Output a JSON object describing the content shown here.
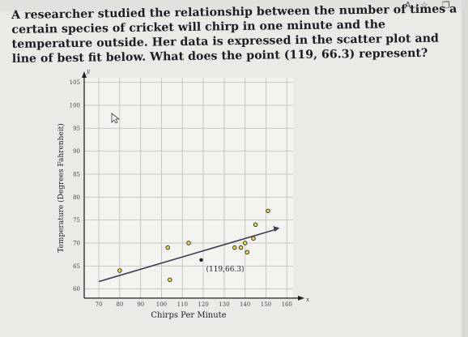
{
  "toolbar": {
    "icons": [
      "text-size-icon",
      "star-icon",
      "bookmark-icon"
    ],
    "text_size_label": "A",
    "star_glyph": "☆",
    "bookmark_glyph": "❒"
  },
  "question": {
    "text": "A researcher studied the relationship between the number of times a certain species of cricket will chirp in one minute and the temperature outside. Her data is expressed in the scatter plot and line of best fit below. What does the point (119, 66.3) represent?"
  },
  "chart_data": {
    "type": "scatter",
    "xlabel": "Chirps Per Minute",
    "ylabel": "Temperature (Degrees Fahrenheit)",
    "x_axis_letter": "x",
    "y_axis_letter": "y",
    "xlim": [
      63,
      163
    ],
    "ylim": [
      58,
      106
    ],
    "x_ticks": [
      70,
      80,
      90,
      100,
      110,
      120,
      130,
      140,
      150,
      160
    ],
    "y_ticks": [
      60,
      65,
      70,
      75,
      80,
      85,
      90,
      95,
      100,
      105
    ],
    "grid": true,
    "points": [
      {
        "x": 80,
        "y": 64
      },
      {
        "x": 104,
        "y": 62
      },
      {
        "x": 103,
        "y": 69
      },
      {
        "x": 113,
        "y": 70
      },
      {
        "x": 135,
        "y": 69
      },
      {
        "x": 138,
        "y": 69
      },
      {
        "x": 141,
        "y": 68
      },
      {
        "x": 140,
        "y": 70
      },
      {
        "x": 144,
        "y": 71
      },
      {
        "x": 145,
        "y": 74
      },
      {
        "x": 151,
        "y": 77
      }
    ],
    "best_fit": {
      "x_start": 70,
      "y_start": 61.6,
      "x_end": 155,
      "y_end": 73
    },
    "highlight_point": {
      "x": 119,
      "y": 66.3,
      "label": "(119,66.3)"
    },
    "colors": {
      "point_fill": "#e8d84a",
      "point_stroke": "#2a2a2a",
      "line": "#3a3e56",
      "grid": "#c9c7c2",
      "plot_bg": "#f4f3ef"
    }
  }
}
